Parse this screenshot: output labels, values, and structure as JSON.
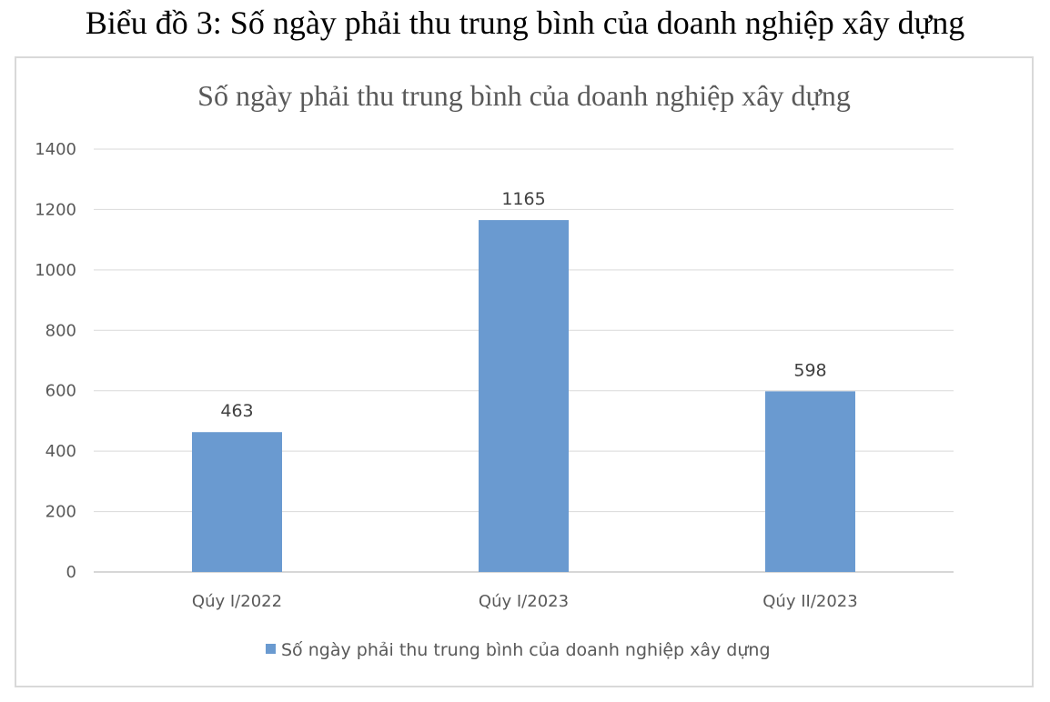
{
  "caption": "Biểu đồ 3:  Số ngày phải thu trung bình của doanh nghiệp xây dựng",
  "chart_data": {
    "type": "bar",
    "title": "Số ngày phải thu trung bình của doanh nghiệp xây dựng",
    "categories": [
      "Qúy I/2022",
      "Qúy I/2023",
      "Qúy II/2023"
    ],
    "series": [
      {
        "name": "Số ngày phải thu trung bình của doanh nghiệp xây dựng",
        "values": [
          463,
          1165,
          598
        ],
        "color": "#6a9ad0"
      }
    ],
    "data_labels": [
      "463",
      "1165",
      "598"
    ],
    "yticks": [
      "0",
      "200",
      "400",
      "600",
      "800",
      "1000",
      "1200",
      "1400"
    ],
    "ylim": [
      0,
      1400
    ],
    "grid": true,
    "legend_position": "bottom"
  }
}
